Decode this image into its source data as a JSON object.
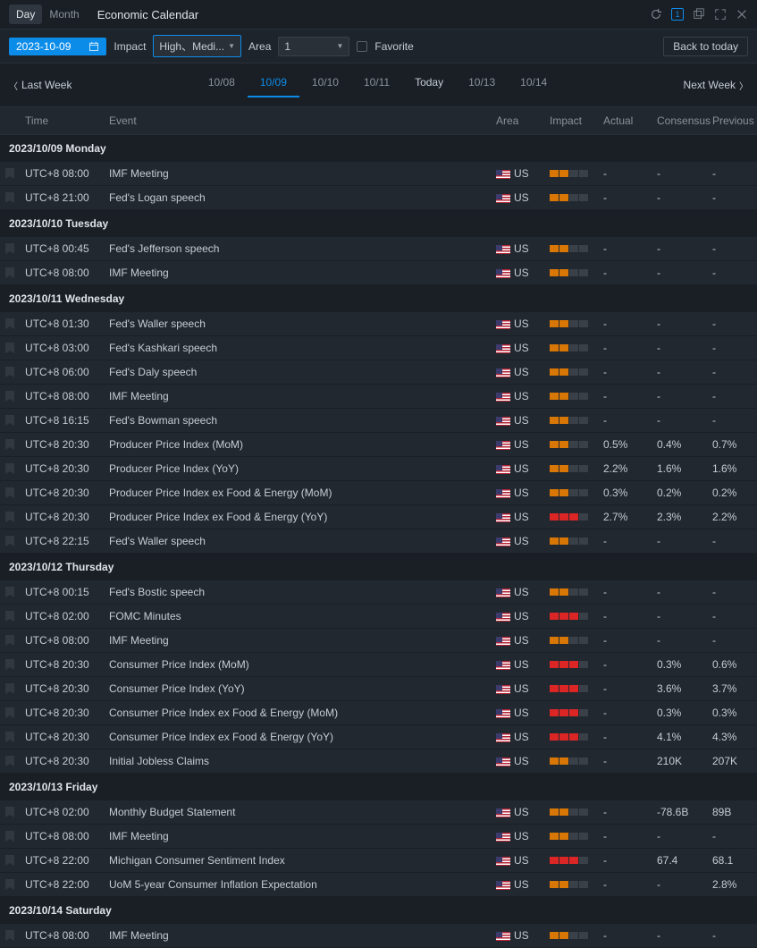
{
  "header": {
    "tabs": [
      "Day",
      "Month"
    ],
    "activeTab": 0,
    "title": "Economic Calendar"
  },
  "filters": {
    "date": "2023-10-09",
    "impactLabel": "Impact",
    "impactValue": "High、Medi...",
    "areaLabel": "Area",
    "areaValue": "1",
    "favoriteLabel": "Favorite",
    "backToday": "Back to today"
  },
  "nav": {
    "prev": "Last Week",
    "next": "Next Week",
    "dates": [
      {
        "label": "10/08",
        "active": false
      },
      {
        "label": "10/09",
        "active": true
      },
      {
        "label": "10/10",
        "active": false
      },
      {
        "label": "10/11",
        "active": false
      },
      {
        "label": "Today",
        "active": false,
        "today": true
      },
      {
        "label": "10/13",
        "active": false
      },
      {
        "label": "10/14",
        "active": false
      }
    ]
  },
  "columns": {
    "time": "Time",
    "event": "Event",
    "area": "Area",
    "impact": "Impact",
    "actual": "Actual",
    "consensus": "Consensus",
    "previous": "Previous"
  },
  "days": [
    {
      "header": "2023/10/09 Monday",
      "rows": [
        {
          "time": "UTC+8 08:00",
          "event": "IMF Meeting",
          "area": "US",
          "impact": 2,
          "actual": "-",
          "consensus": "-",
          "previous": "-"
        },
        {
          "time": "UTC+8 21:00",
          "event": "Fed's Logan speech",
          "area": "US",
          "impact": 2,
          "actual": "-",
          "consensus": "-",
          "previous": "-"
        }
      ]
    },
    {
      "header": "2023/10/10 Tuesday",
      "rows": [
        {
          "time": "UTC+8 00:45",
          "event": "Fed's Jefferson speech",
          "area": "US",
          "impact": 2,
          "actual": "-",
          "consensus": "-",
          "previous": "-"
        },
        {
          "time": "UTC+8 08:00",
          "event": "IMF Meeting",
          "area": "US",
          "impact": 2,
          "actual": "-",
          "consensus": "-",
          "previous": "-"
        }
      ]
    },
    {
      "header": "2023/10/11 Wednesday",
      "rows": [
        {
          "time": "UTC+8 01:30",
          "event": "Fed's Waller speech",
          "area": "US",
          "impact": 2,
          "actual": "-",
          "consensus": "-",
          "previous": "-"
        },
        {
          "time": "UTC+8 03:00",
          "event": "Fed's Kashkari speech",
          "area": "US",
          "impact": 2,
          "actual": "-",
          "consensus": "-",
          "previous": "-"
        },
        {
          "time": "UTC+8 06:00",
          "event": "Fed's Daly speech",
          "area": "US",
          "impact": 2,
          "actual": "-",
          "consensus": "-",
          "previous": "-"
        },
        {
          "time": "UTC+8 08:00",
          "event": "IMF Meeting",
          "area": "US",
          "impact": 2,
          "actual": "-",
          "consensus": "-",
          "previous": "-"
        },
        {
          "time": "UTC+8 16:15",
          "event": "Fed's Bowman speech",
          "area": "US",
          "impact": 2,
          "actual": "-",
          "consensus": "-",
          "previous": "-"
        },
        {
          "time": "UTC+8 20:30",
          "event": "Producer Price Index (MoM)",
          "area": "US",
          "impact": 2,
          "actual": "0.5%",
          "consensus": "0.4%",
          "previous": "0.7%"
        },
        {
          "time": "UTC+8 20:30",
          "event": "Producer Price Index (YoY)",
          "area": "US",
          "impact": 2,
          "actual": "2.2%",
          "consensus": "1.6%",
          "previous": "1.6%"
        },
        {
          "time": "UTC+8 20:30",
          "event": "Producer Price Index ex Food & Energy (MoM)",
          "area": "US",
          "impact": 2,
          "actual": "0.3%",
          "consensus": "0.2%",
          "previous": "0.2%"
        },
        {
          "time": "UTC+8 20:30",
          "event": "Producer Price Index ex Food & Energy (YoY)",
          "area": "US",
          "impact": 3,
          "actual": "2.7%",
          "consensus": "2.3%",
          "previous": "2.2%"
        },
        {
          "time": "UTC+8 22:15",
          "event": "Fed's Waller speech",
          "area": "US",
          "impact": 2,
          "actual": "-",
          "consensus": "-",
          "previous": "-"
        }
      ]
    },
    {
      "header": "2023/10/12 Thursday",
      "rows": [
        {
          "time": "UTC+8 00:15",
          "event": "Fed's Bostic speech",
          "area": "US",
          "impact": 2,
          "actual": "-",
          "consensus": "-",
          "previous": "-"
        },
        {
          "time": "UTC+8 02:00",
          "event": "FOMC Minutes",
          "area": "US",
          "impact": 3,
          "actual": "-",
          "consensus": "-",
          "previous": "-"
        },
        {
          "time": "UTC+8 08:00",
          "event": "IMF Meeting",
          "area": "US",
          "impact": 2,
          "actual": "-",
          "consensus": "-",
          "previous": "-"
        },
        {
          "time": "UTC+8 20:30",
          "event": "Consumer Price Index (MoM)",
          "area": "US",
          "impact": 3,
          "actual": "-",
          "consensus": "0.3%",
          "previous": "0.6%"
        },
        {
          "time": "UTC+8 20:30",
          "event": "Consumer Price Index (YoY)",
          "area": "US",
          "impact": 3,
          "actual": "-",
          "consensus": "3.6%",
          "previous": "3.7%"
        },
        {
          "time": "UTC+8 20:30",
          "event": "Consumer Price Index ex Food & Energy (MoM)",
          "area": "US",
          "impact": 3,
          "actual": "-",
          "consensus": "0.3%",
          "previous": "0.3%"
        },
        {
          "time": "UTC+8 20:30",
          "event": "Consumer Price Index ex Food & Energy (YoY)",
          "area": "US",
          "impact": 3,
          "actual": "-",
          "consensus": "4.1%",
          "previous": "4.3%"
        },
        {
          "time": "UTC+8 20:30",
          "event": "Initial Jobless Claims",
          "area": "US",
          "impact": 2,
          "actual": "-",
          "consensus": "210K",
          "previous": "207K"
        }
      ]
    },
    {
      "header": "2023/10/13 Friday",
      "rows": [
        {
          "time": "UTC+8 02:00",
          "event": "Monthly Budget Statement",
          "area": "US",
          "impact": 2,
          "actual": "-",
          "consensus": "-78.6B",
          "previous": "89B"
        },
        {
          "time": "UTC+8 08:00",
          "event": "IMF Meeting",
          "area": "US",
          "impact": 2,
          "actual": "-",
          "consensus": "-",
          "previous": "-"
        },
        {
          "time": "UTC+8 22:00",
          "event": "Michigan Consumer Sentiment Index",
          "area": "US",
          "impact": 3,
          "actual": "-",
          "consensus": "67.4",
          "previous": "68.1"
        },
        {
          "time": "UTC+8 22:00",
          "event": "UoM 5-year Consumer Inflation Expectation",
          "area": "US",
          "impact": 2,
          "actual": "-",
          "consensus": "-",
          "previous": "2.8%"
        }
      ]
    },
    {
      "header": "2023/10/14 Saturday",
      "rows": [
        {
          "time": "UTC+8 08:00",
          "event": "IMF Meeting",
          "area": "US",
          "impact": 2,
          "actual": "-",
          "consensus": "-",
          "previous": "-"
        }
      ]
    }
  ]
}
